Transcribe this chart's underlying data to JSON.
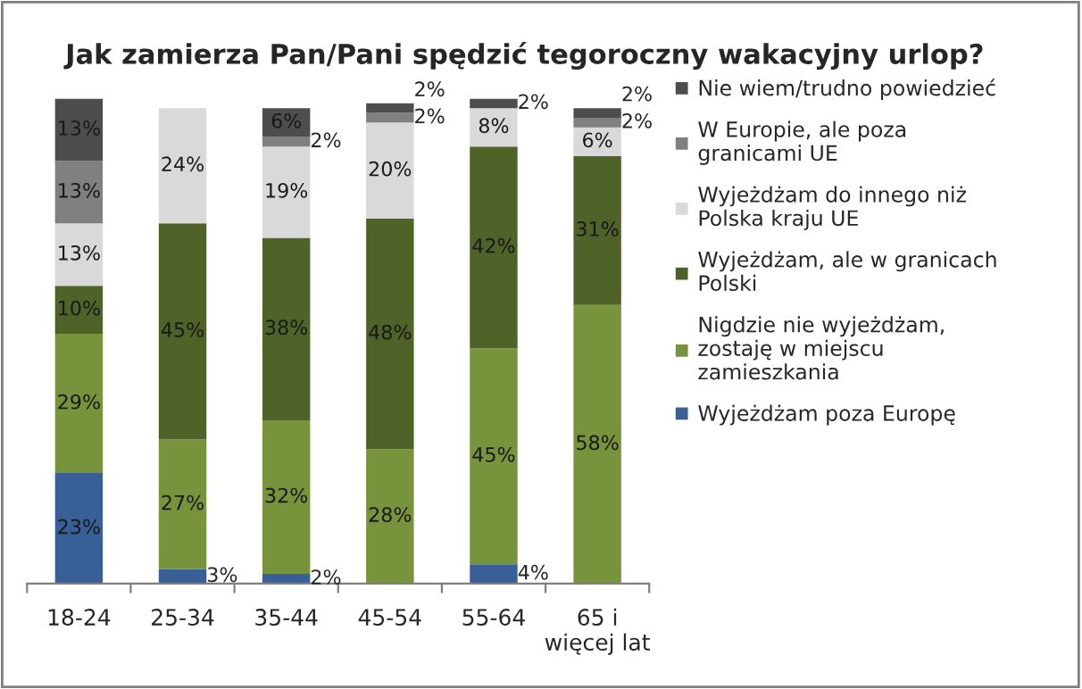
{
  "chart_data": {
    "type": "bar",
    "stacked": true,
    "title": "Jak zamierza Pan/Pani spędzić tegoroczny wakacyjny urlop?",
    "categories": [
      "18-24",
      "25-34",
      "35-44",
      "45-54",
      "55-64",
      "65 i więcej lat"
    ],
    "ylim": [
      0,
      101
    ],
    "grid": false,
    "legend": "right",
    "tick_labels": "x",
    "series": [
      {
        "name": "Wyjeżdżam poza Europę",
        "color": "#386096",
        "values": [
          23,
          3,
          2,
          null,
          4,
          null
        ],
        "value_labels": [
          "23%",
          "3%",
          "2%",
          null,
          "4%",
          null
        ]
      },
      {
        "name": "Nigdzie nie wyjeżdżam, zostaję w miejscu zamieszkania",
        "color": "#77933c",
        "values": [
          29,
          27,
          32,
          28,
          45,
          58
        ],
        "value_labels": [
          "29%",
          "27%",
          "32%",
          "28%",
          "45%",
          "58%"
        ]
      },
      {
        "name": "Wyjeżdżam, ale w granicach Polski",
        "color": "#4f6228",
        "values": [
          10,
          45,
          38,
          48,
          42,
          31
        ],
        "value_labels": [
          "10%",
          "45%",
          "38%",
          "48%",
          "42%",
          "31%"
        ]
      },
      {
        "name": "Wyjeżdżam do innego niż Polska kraju UE",
        "color": "#d9d9d9",
        "values": [
          13,
          24,
          19,
          20,
          8,
          6
        ],
        "value_labels": [
          "13%",
          "24%",
          "19%",
          "20%",
          "8%",
          "6%"
        ]
      },
      {
        "name": "W Europie, ale poza granicami UE",
        "color": "#808080",
        "values": [
          13,
          null,
          2,
          2,
          null,
          2
        ],
        "value_labels": [
          "13%",
          null,
          "2%",
          "2%",
          null,
          "2%"
        ]
      },
      {
        "name": "Nie wiem/trudno powiedzieć",
        "color": "#4d4d4d",
        "values": [
          13,
          null,
          6,
          2,
          2,
          2
        ],
        "value_labels": [
          "13%",
          null,
          "6%",
          "2%",
          "2%",
          "2%"
        ]
      }
    ]
  }
}
